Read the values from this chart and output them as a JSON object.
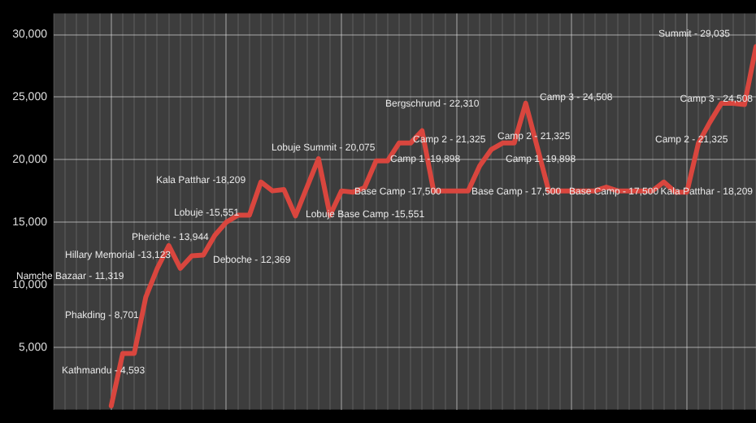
{
  "chart_data": {
    "type": "line",
    "categories": [
      null,
      null,
      null,
      null,
      null,
      null,
      null,
      null,
      null,
      null,
      null,
      null,
      null,
      null,
      null,
      null,
      null,
      null,
      null,
      null,
      null,
      null,
      null,
      null,
      null,
      null,
      null,
      null,
      null,
      null,
      null,
      null,
      null,
      null,
      null,
      null,
      null,
      null,
      null,
      null,
      null,
      null,
      null,
      null,
      null,
      null,
      null,
      null,
      null,
      null,
      null,
      null,
      null,
      null,
      null,
      null,
      null,
      null,
      null,
      null,
      null,
      null
    ],
    "series": [
      {
        "color": "#d9463e",
        "values": [
          null,
          null,
          null,
          null,
          null,
          300,
          4500,
          4500,
          9000,
          11300,
          13123,
          11300,
          12300,
          12369,
          13944,
          15000,
          15551,
          15551,
          18209,
          17500,
          17600,
          15500,
          17800,
          20075,
          15551,
          17500,
          17400,
          17750,
          19898,
          19898,
          21325,
          21325,
          22310,
          17500,
          17500,
          17500,
          17500,
          19500,
          20800,
          21325,
          21325,
          24508,
          21000,
          17500,
          17500,
          17500,
          17500,
          17500,
          17800,
          17500,
          17500,
          17500,
          17500,
          18209,
          17400,
          17400,
          21325,
          23000,
          24508,
          24508,
          24400,
          29035
        ]
      }
    ],
    "ylim": [
      0,
      31700
    ],
    "yticks": [
      {
        "value": 5000,
        "label": "5,000"
      },
      {
        "value": 10000,
        "label": "10,000"
      },
      {
        "value": 15000,
        "label": "15,000"
      },
      {
        "value": 20000,
        "label": "20,000"
      },
      {
        "value": 25000,
        "label": "25,000"
      },
      {
        "value": 30000,
        "label": "30,000"
      }
    ],
    "grid": true,
    "tick_labels": "y",
    "line_style": "solid",
    "annotations": [
      "Kathmandu - 4,593",
      "Phakding - 8,701",
      "Namche Bazaar - 11,319",
      "Hillary Memorial -13,123",
      "Pheriche - 13,944",
      "Deboche - 12,369",
      "Lobuje -15,551",
      "Kala Patthar -18,209",
      "Lobuje Summit - 20,075",
      "Lobuje Base Camp -15,551",
      "Base Camp -17,500",
      "Camp 1 -19,898",
      "Camp 2 - 21,325",
      "Bergschrund - 22,310",
      "Base Camp - 17,500",
      "Camp 2 - 21,325",
      "Camp 1 -19,898",
      "Camp 3 - 24,508",
      "Base Camp - 17,500",
      "Camp 2 - 21,325",
      "Kala Patthar - 18,209",
      "Summit - 29,035",
      "Camp 3 - 24,508"
    ]
  }
}
